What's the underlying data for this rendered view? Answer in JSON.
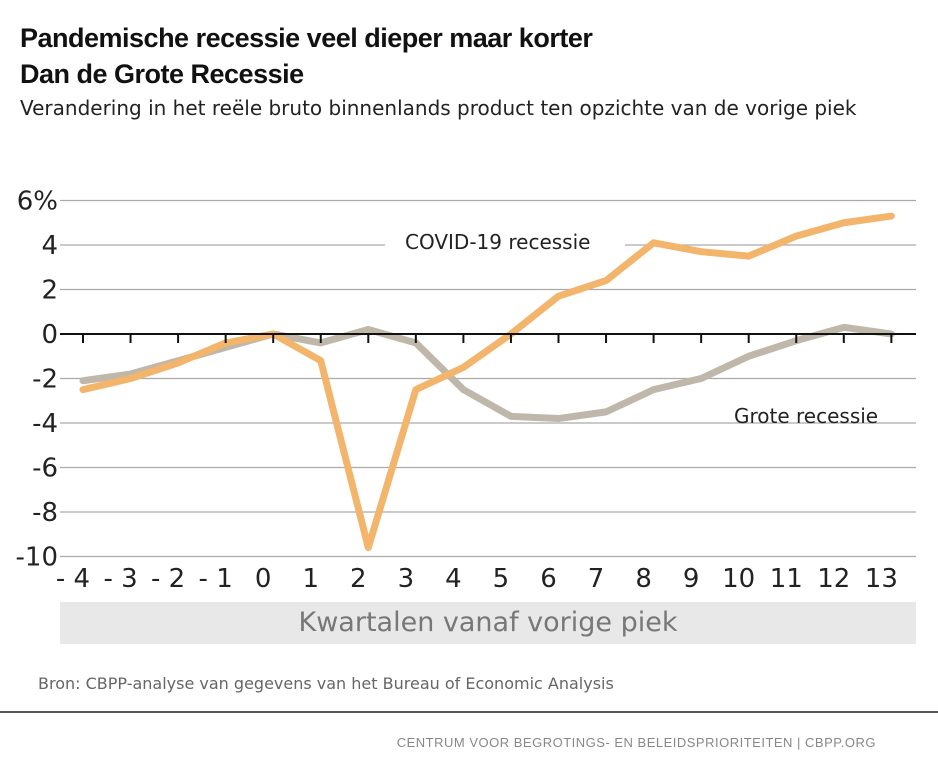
{
  "chart_data": {
    "type": "line",
    "title": [
      "Pandemische recessie veel dieper maar korter",
      "Dan de Grote Recessie"
    ],
    "subtitle": "Verandering in het reële bruto binnenlands product ten opzichte van de vorige piek",
    "xlabel": "Kwartalen vanaf vorige piek",
    "x": [
      -4,
      -3,
      -2,
      -1,
      0,
      1,
      2,
      3,
      4,
      5,
      6,
      7,
      8,
      9,
      10,
      11,
      12,
      13
    ],
    "x_tick_labels": [
      "- 4",
      "- 3",
      "- 2",
      "- 1",
      "0",
      "1",
      "2",
      "3",
      "4",
      "5",
      "6",
      "7",
      "8",
      "9",
      "10",
      "11",
      "12",
      "13"
    ],
    "y_tick_labels": [
      "6%",
      "4",
      "2",
      "0",
      "-2",
      "-4",
      "-6",
      "-8",
      "-10"
    ],
    "y_ticks": [
      6,
      4,
      2,
      0,
      -2,
      -4,
      -6,
      -8,
      -10
    ],
    "ylim": [
      -10,
      6
    ],
    "grid": true,
    "series": [
      {
        "name": "COVID-19 recessie",
        "color": "#f2b56b",
        "values": [
          -2.5,
          -2.0,
          -1.3,
          -0.4,
          0,
          -1.2,
          -9.6,
          -2.5,
          -1.5,
          0,
          1.7,
          2.4,
          4.1,
          3.7,
          3.5,
          4.4,
          5.0,
          5.3
        ]
      },
      {
        "name": "Grote recessie",
        "color": "#bfb7aa",
        "values": [
          -2.1,
          -1.8,
          -1.2,
          -0.6,
          0,
          -0.4,
          0.2,
          -0.4,
          -2.5,
          -3.7,
          -3.8,
          -3.5,
          -2.5,
          -2.0,
          -1.0,
          -0.3,
          0.3,
          0.0
        ]
      }
    ],
    "source": "Bron: CBPP-analyse van gegevens van het Bureau of Economic Analysis",
    "footer": "CENTRUM VOOR BEGROTINGS- EN BELEIDSPRIORITEITEN | CBPP.ORG"
  }
}
